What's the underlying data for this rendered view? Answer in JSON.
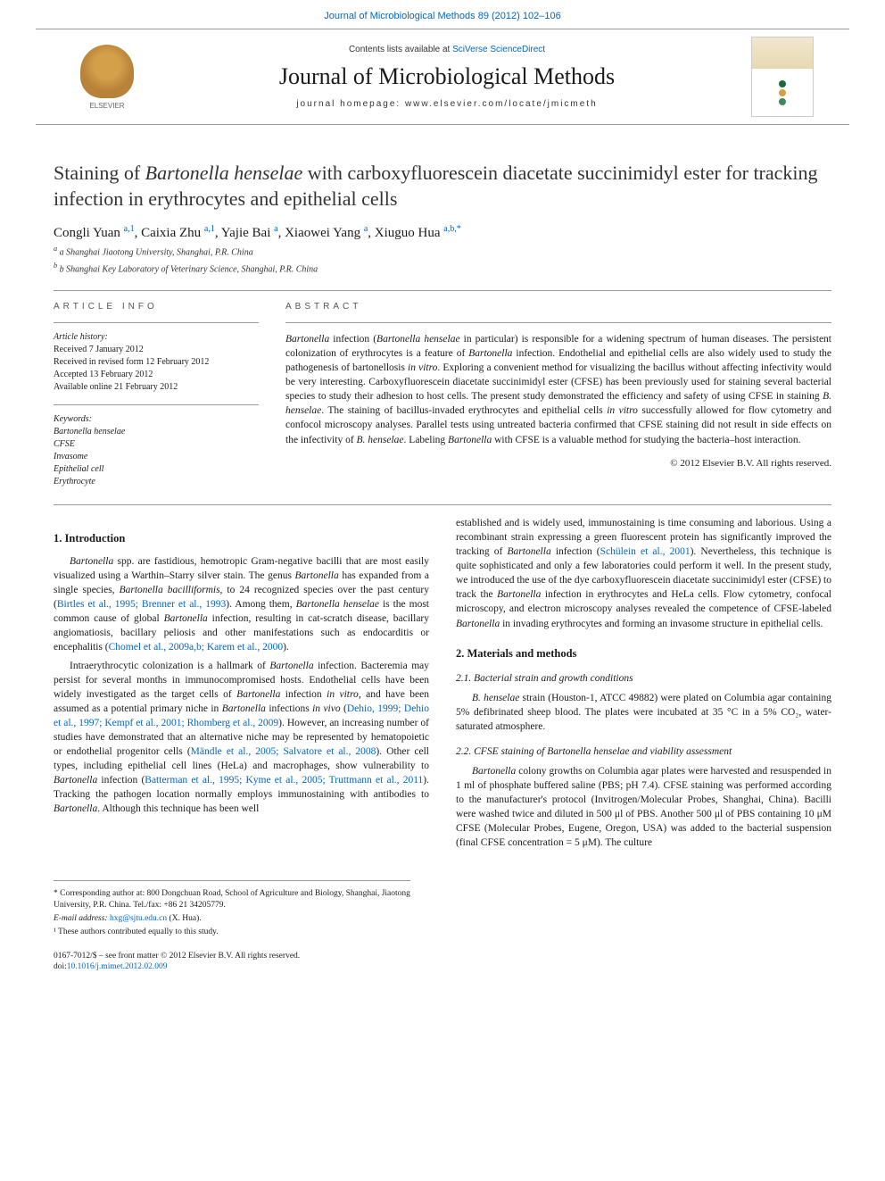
{
  "header": {
    "top_link": "Journal of Microbiological Methods 89 (2012) 102–106",
    "contents_available": "Contents lists available at",
    "contents_link": "SciVerse ScienceDirect",
    "journal_name": "Journal of Microbiological Methods",
    "homepage_label": "journal homepage: www.elsevier.com/locate/jmicmeth",
    "publisher": "ELSEVIER"
  },
  "article": {
    "title_pre": "Staining of ",
    "title_em": "Bartonella henselae",
    "title_post": " with carboxyfluorescein diacetate succinimidyl ester for tracking infection in erythrocytes and epithelial cells",
    "authors_html": "Congli Yuan <sup>a,1</sup>, Caixia Zhu <sup>a,1</sup>, Yajie Bai <sup>a</sup>, Xiaowei Yang <sup>a</sup>, Xiuguo Hua <sup>a,b,*</sup>",
    "affiliations": [
      "a Shanghai Jiaotong University, Shanghai, P.R. China",
      "b Shanghai Key Laboratory of Veterinary Science, Shanghai, P.R. China"
    ]
  },
  "info": {
    "heading": "ARTICLE INFO",
    "history_title": "Article history:",
    "history": "Received 7 January 2012\nReceived in revised form 12 February 2012\nAccepted 13 February 2012\nAvailable online 21 February 2012",
    "keywords_title": "Keywords:",
    "keywords": "Bartonella henselae\nCFSE\nInvasome\nEpithelial cell\nErythrocyte"
  },
  "abstract": {
    "heading": "ABSTRACT",
    "text": "Bartonella infection (Bartonella henselae in particular) is responsible for a widening spectrum of human diseases. The persistent colonization of erythrocytes is a feature of Bartonella infection. Endothelial and epithelial cells are also widely used to study the pathogenesis of bartonellosis in vitro. Exploring a convenient method for visualizing the bacillus without affecting infectivity would be very interesting. Carboxyfluorescein diacetate succinimidyl ester (CFSE) has been previously used for staining several bacterial species to study their adhesion to host cells. The present study demonstrated the efficiency and safety of using CFSE in staining B. henselae. The staining of bacillus-invaded erythrocytes and epithelial cells in vitro successfully allowed for flow cytometry and confocol microscopy analyses. Parallel tests using untreated bacteria confirmed that CFSE staining did not result in side effects on the infectivity of B. henselae. Labeling Bartonella with CFSE is a valuable method for studying the bacteria–host interaction.",
    "copyright": "© 2012 Elsevier B.V. All rights reserved."
  },
  "body": {
    "intro_heading": "1. Introduction",
    "intro_p1": "Bartonella spp. are fastidious, hemotropic Gram-negative bacilli that are most easily visualized using a Warthin–Starry silver stain. The genus Bartonella has expanded from a single species, Bartonella bacilliformis, to 24 recognized species over the past century (Birtles et al., 1995; Brenner et al., 1993). Among them, Bartonella henselae is the most common cause of global Bartonella infection, resulting in cat-scratch disease, bacillary angiomatiosis, bacillary peliosis and other manifestations such as endocarditis or encephalitis (Chomel et al., 2009a,b; Karem et al., 2000).",
    "intro_p2": "Intraerythrocytic colonization is a hallmark of Bartonella infection. Bacteremia may persist for several months in immunocompromised hosts. Endothelial cells have been widely investigated as the target cells of Bartonella infection in vitro, and have been assumed as a potential primary niche in Bartonella infections in vivo (Dehio, 1999; Dehio et al., 1997; Kempf et al., 2001; Rhomberg et al., 2009). However, an increasing number of studies have demonstrated that an alternative niche may be represented by hematopoietic or endothelial progenitor cells (Mändle et al., 2005; Salvatore et al., 2008). Other cell types, including epithelial cell lines (HeLa) and macrophages, show vulnerability to Bartonella infection (Batterman et al., 1995; Kyme et al., 2005; Truttmann et al., 2011). Tracking the pathogen location normally employs immunostaining with antibodies to Bartonella. Although this technique has been well",
    "col2_p1": "established and is widely used, immunostaining is time consuming and laborious. Using a recombinant strain expressing a green fluorescent protein has significantly improved the tracking of Bartonella infection (Schülein et al., 2001). Nevertheless, this technique is quite sophisticated and only a few laboratories could perform it well. In the present study, we introduced the use of the dye carboxyfluorescein diacetate succinimidyl ester (CFSE) to track the Bartonella infection in erythrocytes and HeLa cells. Flow cytometry, confocal microscopy, and electron microscopy analyses revealed the competence of CFSE-labeled Bartonella in invading erythrocytes and forming an invasome structure in epithelial cells.",
    "methods_heading": "2. Materials and methods",
    "sec21_heading": "2.1. Bacterial strain and growth conditions",
    "sec21_p": "B. henselae strain (Houston-1, ATCC 49882) were plated on Columbia agar containing 5% defibrinated sheep blood. The plates were incubated at 35 °C in a 5% CO₂, water-saturated atmosphere.",
    "sec22_heading": "2.2. CFSE staining of Bartonella henselae and viability assessment",
    "sec22_p": "Bartonella colony growths on Columbia agar plates were harvested and resuspended in 1 ml of phosphate buffered saline (PBS; pH 7.4). CFSE staining was performed according to the manufacturer's protocol (Invitrogen/Molecular Probes, Shanghai, China). Bacilli were washed twice and diluted in 500 μl of PBS. Another 500 μl of PBS containing 10 μM CFSE (Molecular Probes, Eugene, Oregon, USA) was added to the bacterial suspension (final CFSE concentration = 5 μM). The culture"
  },
  "footnotes": {
    "corresponding": "* Corresponding author at: 800 Dongchuan Road, School of Agriculture and Biology, Shanghai, Jiaotong University, P.R. China. Tel./fax: +86 21 34205779.",
    "email_label": "E-mail address:",
    "email": "hxg@sjtu.edu.cn",
    "email_suffix": "(X. Hua).",
    "equal": "¹ These authors contributed equally to this study."
  },
  "footer": {
    "line1": "0167-7012/$ – see front matter © 2012 Elsevier B.V. All rights reserved.",
    "doi_label": "doi:",
    "doi": "10.1016/j.mimet.2012.02.009"
  },
  "colors": {
    "link": "#0066cc",
    "text": "#1a1a1a",
    "divider": "#999999",
    "cover_dot1": "#1a6b3a",
    "cover_dot2": "#d4a040",
    "cover_dot3": "#3a8a5a"
  }
}
